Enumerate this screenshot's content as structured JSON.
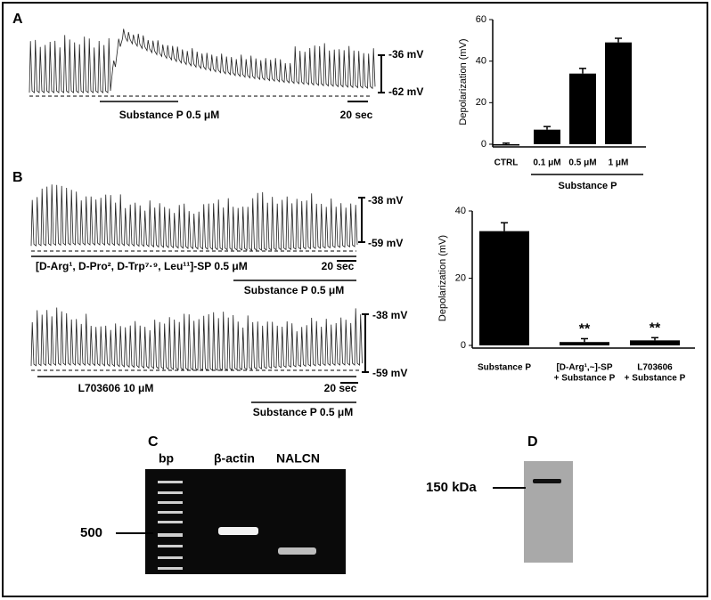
{
  "panel_labels": [
    "A",
    "B",
    "C",
    "D"
  ],
  "traces": [
    {
      "top_label": "-36 mV",
      "bottom_label": "-62 mV",
      "drug_label": "Substance P 0.5 μM",
      "scale_label": "20 sec"
    },
    {
      "top_label": "-38 mV",
      "bottom_label": "-59 mV",
      "drug_label": "[D-Arg¹, D-Pro², D-Trp⁷·⁹, Leu¹¹]-SP 0.5 μM",
      "scale_label": "20 sec",
      "second_label": "Substance P 0.5 μM"
    },
    {
      "top_label": "-38 mV",
      "bottom_label": "-59 mV",
      "drug_label": "L703606 10 μM",
      "scale_label": "20 sec",
      "second_label": "Substance P 0.5 μM"
    }
  ],
  "gel": {
    "lanes": [
      "bp",
      "β-actin",
      "NALCN"
    ],
    "marker": "500"
  },
  "western": {
    "marker": "150 kDa"
  },
  "chart_data": [
    {
      "type": "bar",
      "y_label": "Depolarization (mV)",
      "categories": [
        [
          "CTRL"
        ],
        [
          "0.1 μM"
        ],
        [
          "0.5 μM"
        ],
        [
          "1 μM"
        ]
      ],
      "values": [
        0,
        7,
        34,
        49
      ],
      "errors": [
        0.5,
        1.5,
        2.5,
        2
      ],
      "ylim": [
        0,
        60
      ],
      "yticks": [
        0,
        20,
        40,
        60
      ],
      "group_label": "Substance P",
      "color": "#000000"
    },
    {
      "type": "bar",
      "y_label": "Depolarization (mV)",
      "categories": [
        [
          "Substance P"
        ],
        [
          "[D-Arg¹,~]-SP",
          "+ Substance P"
        ],
        [
          "L703606",
          "+ Substance P"
        ]
      ],
      "values": [
        34,
        1,
        1.5
      ],
      "errors": [
        2.5,
        1,
        0.8
      ],
      "ylim": [
        0,
        40
      ],
      "yticks": [
        0,
        20,
        40
      ],
      "annotations": [
        "**",
        "**"
      ],
      "color": "#000000"
    }
  ]
}
